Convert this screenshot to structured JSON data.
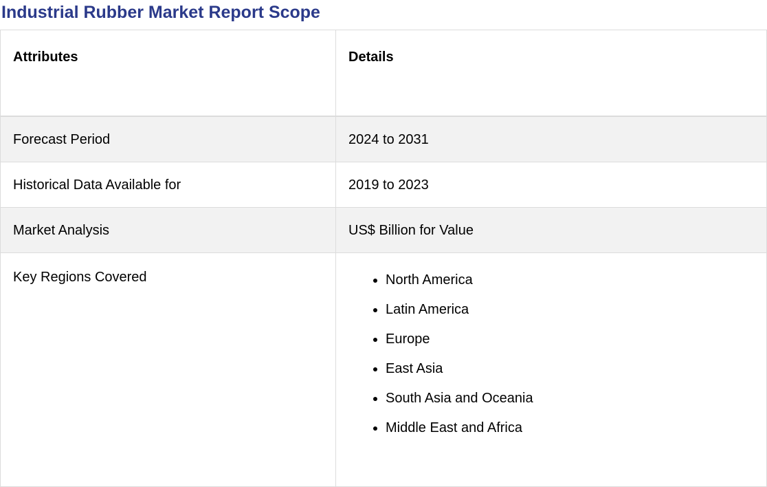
{
  "page": {
    "title": "Industrial Rubber Market Report Scope"
  },
  "table": {
    "headers": {
      "attributes": "Attributes",
      "details": "Details"
    },
    "rows": [
      {
        "attribute": "Forecast Period",
        "detail": "2024 to 2031"
      },
      {
        "attribute": "Historical Data Available for",
        "detail": "2019 to 2023"
      },
      {
        "attribute": "Market Analysis",
        "detail": "US$ Billion for Value"
      }
    ],
    "regions": {
      "attribute": "Key Regions Covered",
      "items": [
        "North America",
        "Latin America",
        "Europe",
        "East Asia",
        "South Asia and Oceania",
        "Middle East and Africa"
      ]
    }
  },
  "colors": {
    "title": "#2b3a8a",
    "shaded_row": "#f2f2f2",
    "border": "#dcdcdc"
  }
}
